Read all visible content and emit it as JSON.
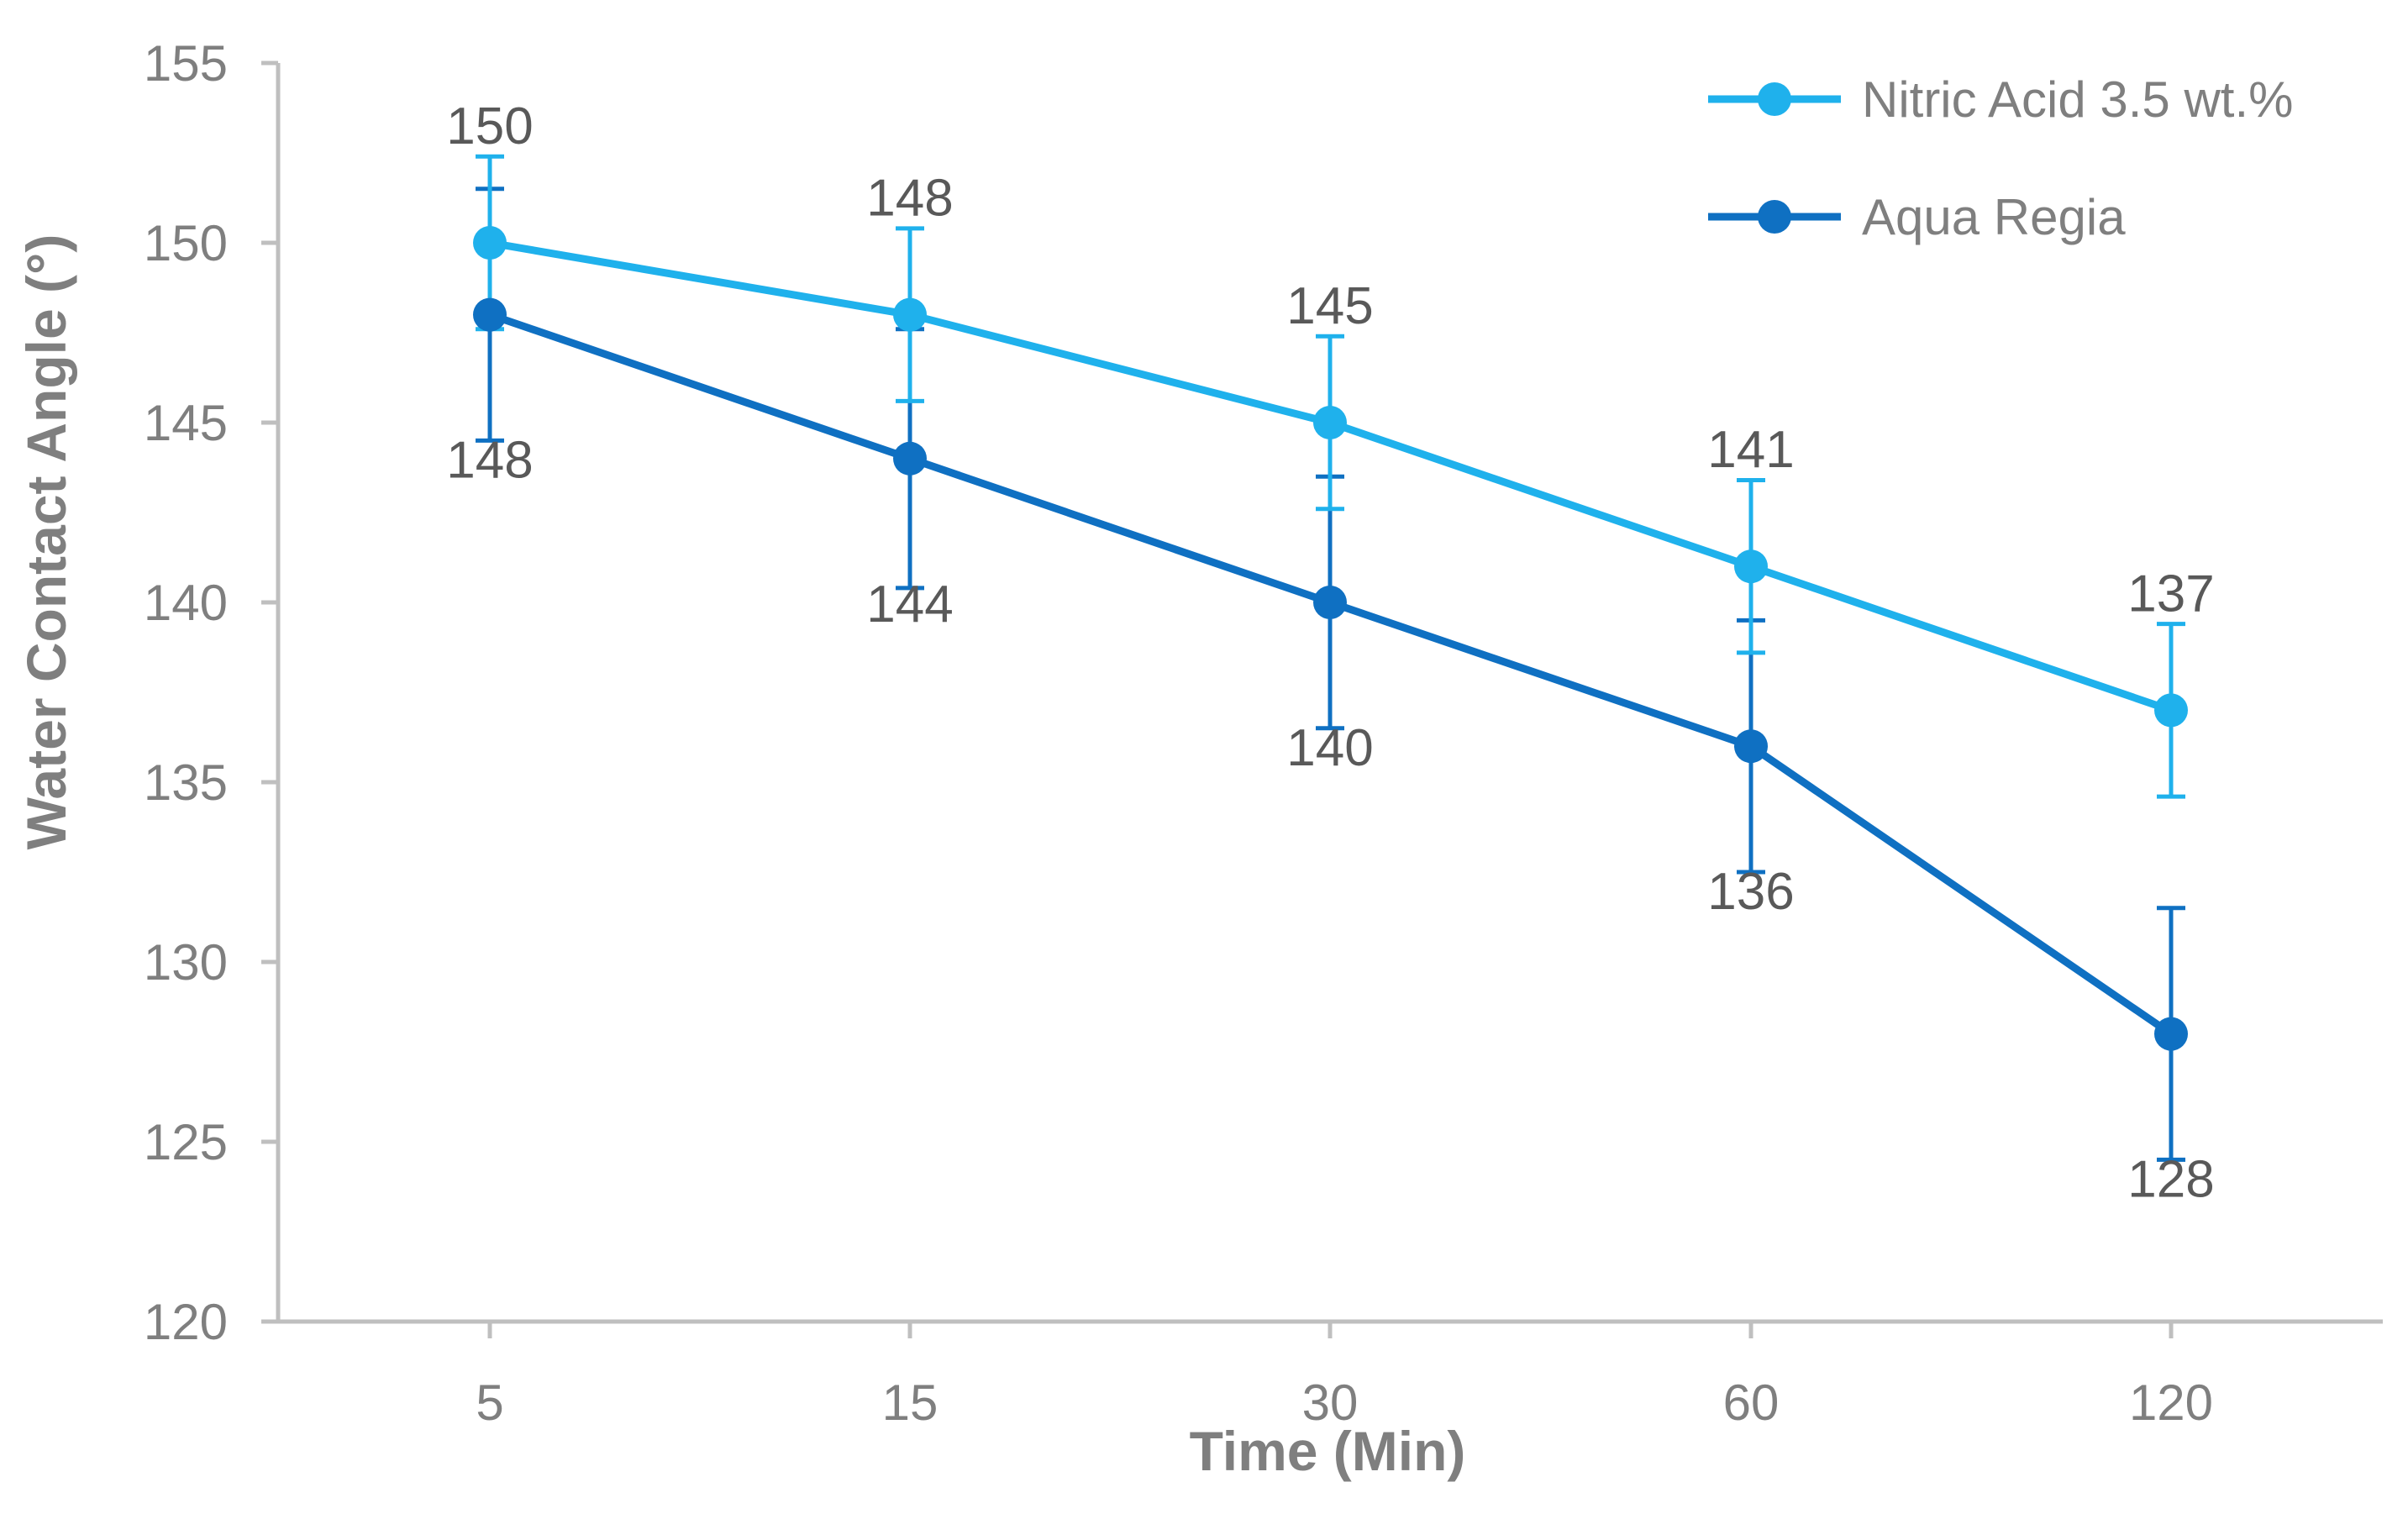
{
  "chart_data": {
    "type": "line",
    "title": "",
    "xlabel": "Time (Min)",
    "ylabel": "Water Contact Angle (°)",
    "categories": [
      "5",
      "15",
      "30",
      "60",
      "120"
    ],
    "ylim": [
      120,
      155
    ],
    "yticks": [
      120,
      125,
      130,
      135,
      140,
      145,
      150,
      155
    ],
    "grid": false,
    "legend_position": "top-right",
    "series": [
      {
        "name": "Nitric Acid 3.5 wt.%",
        "color": "#1fb1ec",
        "values": [
          150,
          148,
          145,
          141,
          137
        ],
        "error": [
          2.4,
          2.4,
          2.4,
          2.4,
          2.4
        ],
        "labels": [
          "150",
          "148",
          "145",
          "141",
          "137"
        ],
        "label_position": "above"
      },
      {
        "name": "Aqua Regia",
        "color": "#0f70c2",
        "values": [
          148,
          144,
          140,
          136,
          128
        ],
        "error": [
          3.5,
          3.6,
          3.5,
          3.5,
          3.5
        ],
        "labels": [
          "148",
          "144",
          "140",
          "136",
          "128"
        ],
        "label_position": "below"
      }
    ],
    "axis_color": "#bfbfbf"
  }
}
